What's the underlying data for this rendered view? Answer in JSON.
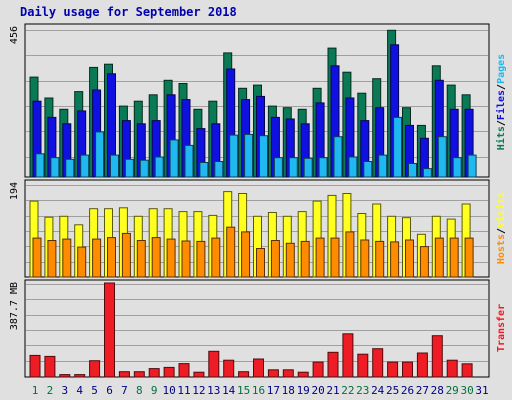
{
  "title": "Daily usage for September 2018",
  "colors": {
    "hits": "#0a7a56",
    "files": "#1010e0",
    "pages": "#20b8f0",
    "visits": "#ffff20",
    "hosts": "#ff8c00",
    "kbytes": "#ee1c24",
    "weekday_label": "#000080",
    "weekend_label": "#007040",
    "title": "#0000b0",
    "background": "#e0e0e0"
  },
  "chart_data": [
    {
      "type": "bar",
      "panel": "hits-files-pages",
      "categories": [
        "1",
        "2",
        "3",
        "4",
        "5",
        "6",
        "7",
        "8",
        "9",
        "10",
        "11",
        "12",
        "13",
        "14",
        "15",
        "16",
        "17",
        "18",
        "19",
        "20",
        "21",
        "22",
        "23",
        "24",
        "25",
        "26",
        "27",
        "28",
        "29",
        "30",
        "31"
      ],
      "weekend_days": [
        "1",
        "2",
        "8",
        "9",
        "15",
        "16",
        "22",
        "23",
        "29",
        "30"
      ],
      "y_tick_label": "456",
      "ylim": [
        0,
        456
      ],
      "legend": [
        "Hits",
        "Files",
        "Pages"
      ],
      "grid": true,
      "series": [
        {
          "name": "Hits",
          "values": [
            310,
            245,
            210,
            265,
            340,
            350,
            220,
            235,
            255,
            300,
            290,
            210,
            235,
            385,
            275,
            285,
            220,
            215,
            210,
            275,
            400,
            325,
            260,
            305,
            455,
            215,
            160,
            345,
            285,
            255,
            0
          ]
        },
        {
          "name": "Files",
          "values": [
            235,
            185,
            165,
            205,
            270,
            320,
            175,
            165,
            175,
            255,
            240,
            150,
            165,
            335,
            240,
            250,
            185,
            180,
            165,
            230,
            345,
            245,
            175,
            215,
            410,
            160,
            120,
            300,
            210,
            210,
            0
          ]
        },
        {
          "name": "Pages",
          "values": [
            72,
            60,
            55,
            68,
            140,
            68,
            55,
            52,
            62,
            115,
            98,
            45,
            48,
            130,
            132,
            128,
            60,
            60,
            58,
            60,
            125,
            62,
            48,
            68,
            185,
            42,
            26,
            125,
            60,
            68,
            0
          ]
        }
      ]
    },
    {
      "type": "bar",
      "panel": "visits-hosts",
      "categories": [
        "1",
        "2",
        "3",
        "4",
        "5",
        "6",
        "7",
        "8",
        "9",
        "10",
        "11",
        "12",
        "13",
        "14",
        "15",
        "16",
        "17",
        "18",
        "19",
        "20",
        "21",
        "22",
        "23",
        "24",
        "25",
        "26",
        "27",
        "28",
        "29",
        "30",
        "31"
      ],
      "y_tick_label": "194",
      "ylim": [
        0,
        194
      ],
      "legend": [
        "Hosts",
        "Visits"
      ],
      "grid": true,
      "series": [
        {
          "name": "Visits",
          "values": [
            160,
            126,
            128,
            110,
            144,
            144,
            146,
            128,
            144,
            144,
            138,
            138,
            130,
            180,
            176,
            128,
            136,
            128,
            138,
            160,
            172,
            176,
            134,
            154,
            128,
            125,
            90,
            128,
            122,
            154,
            0
          ]
        },
        {
          "name": "Hosts",
          "values": [
            82,
            77,
            80,
            63,
            80,
            83,
            92,
            77,
            83,
            80,
            76,
            75,
            82,
            105,
            95,
            60,
            77,
            71,
            75,
            82,
            82,
            95,
            78,
            75,
            74,
            78,
            64,
            82,
            82,
            82,
            0
          ]
        }
      ]
    },
    {
      "type": "bar",
      "panel": "transfer",
      "categories": [
        "1",
        "2",
        "3",
        "4",
        "5",
        "6",
        "7",
        "8",
        "9",
        "10",
        "11",
        "12",
        "13",
        "14",
        "15",
        "16",
        "17",
        "18",
        "19",
        "20",
        "21",
        "22",
        "23",
        "24",
        "25",
        "26",
        "27",
        "28",
        "29",
        "30",
        "31"
      ],
      "y_tick_label": "387.7 MB",
      "ylim": [
        0,
        387.7
      ],
      "legend": [
        "Transfer"
      ],
      "grid": true,
      "series": [
        {
          "name": "Transfer",
          "values": [
            90,
            86,
            10,
            10,
            68,
            392,
            22,
            22,
            35,
            40,
            56,
            20,
            107,
            70,
            22,
            75,
            30,
            30,
            20,
            62,
            103,
            180,
            95,
            118,
            62,
            62,
            100,
            172,
            70,
            55,
            0
          ]
        }
      ]
    }
  ]
}
